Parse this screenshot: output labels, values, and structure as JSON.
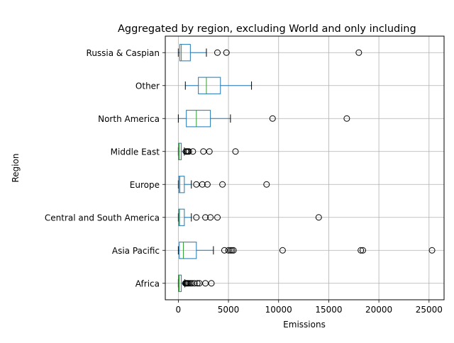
{
  "chart_data": {
    "type": "boxplot",
    "orientation": "horizontal",
    "title": "Aggregated by region, excluding World and only including",
    "xlabel": "Emissions",
    "ylabel": "Region",
    "xlim": [
      -1300,
      26500
    ],
    "xticks": [
      0,
      5000,
      10000,
      15000,
      20000,
      25000
    ],
    "grid": true,
    "colors": {
      "box": "#1f77b4",
      "median": "#2ca02c",
      "whisker": "#1f77b4",
      "flier": "#000000",
      "grid": "#b0b0b0"
    },
    "categories": [
      "Africa",
      "Asia Pacific",
      "Central and South America",
      "Europe",
      "Middle East",
      "North America",
      "Other",
      "Russia & Caspian"
    ],
    "boxes": [
      {
        "region": "Africa",
        "whislo": 0,
        "q1": 20,
        "med": 80,
        "q3": 300,
        "whishi": 650,
        "fliers": [
          700,
          780,
          850,
          950,
          1050,
          1200,
          1350,
          1600,
          1900,
          2100,
          2700,
          3300
        ]
      },
      {
        "region": "Asia Pacific",
        "whislo": 0,
        "q1": 100,
        "med": 500,
        "q3": 1800,
        "whishi": 3500,
        "fliers": [
          4600,
          5000,
          5200,
          5350,
          5500,
          10400,
          18200,
          18400,
          25300
        ]
      },
      {
        "region": "Central and South America",
        "whislo": 0,
        "q1": 40,
        "med": 120,
        "q3": 600,
        "whishi": 1300,
        "fliers": [
          1800,
          2700,
          3200,
          3900,
          14000
        ]
      },
      {
        "region": "Europe",
        "whislo": 0,
        "q1": 50,
        "med": 150,
        "q3": 600,
        "whishi": 1300,
        "fliers": [
          1800,
          2400,
          2900,
          4400,
          8800
        ]
      },
      {
        "region": "Middle East",
        "whislo": 0,
        "q1": 20,
        "med": 100,
        "q3": 300,
        "whishi": 600,
        "fliers": [
          750,
          850,
          950,
          1050,
          1450,
          2500,
          3100,
          5700
        ]
      },
      {
        "region": "North America",
        "whislo": 0,
        "q1": 800,
        "med": 1800,
        "q3": 3200,
        "whishi": 5200,
        "fliers": [
          9400,
          16800
        ]
      },
      {
        "region": "Other",
        "whislo": 700,
        "q1": 2000,
        "med": 2800,
        "q3": 4200,
        "whishi": 7300,
        "fliers": []
      },
      {
        "region": "Russia & Caspian",
        "whislo": 0,
        "q1": 150,
        "med": 300,
        "q3": 1200,
        "whishi": 2800,
        "fliers": [
          3900,
          4800,
          18000
        ]
      }
    ]
  }
}
